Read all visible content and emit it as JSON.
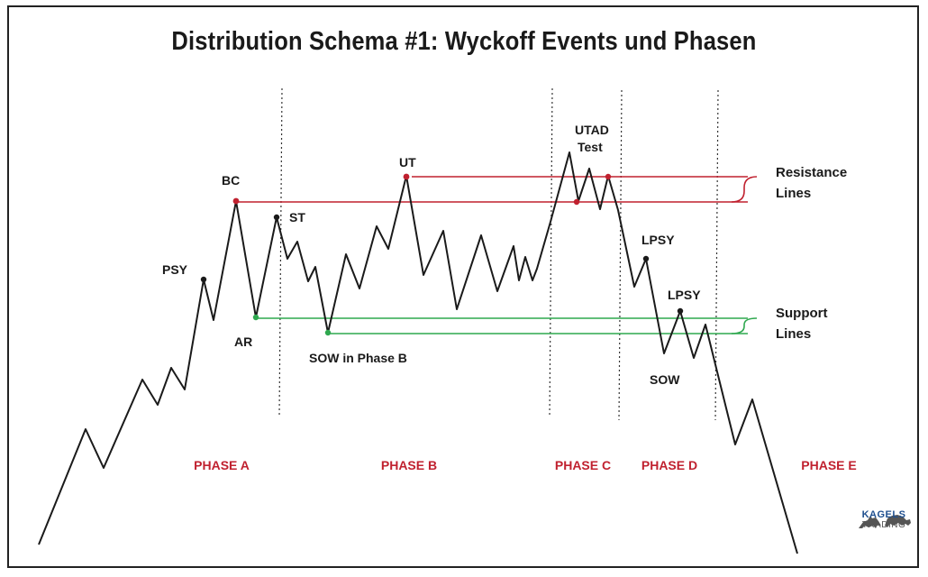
{
  "title": "Distribution Schema #1: Wyckoff Events und Phasen",
  "colors": {
    "price": "#1a1a1a",
    "resistance": "#c0212f",
    "support": "#2fa84f",
    "phase_text": "#c0212f",
    "logo": "#1f4f8f"
  },
  "events": {
    "psy": "PSY",
    "bc": "BC",
    "ar": "AR",
    "st": "ST",
    "sow_phase_b": "SOW in Phase B",
    "ut": "UT",
    "utad": "UTAD",
    "test": "Test",
    "lpsy_1": "LPSY",
    "lpsy_2": "LPSY",
    "sow": "SOW"
  },
  "phases": [
    "PHASE A",
    "PHASE B",
    "PHASE C",
    "PHASE D",
    "PHASE E"
  ],
  "legend": {
    "resistance_1": "Resistance",
    "resistance_2": "Lines",
    "support_1": "Support",
    "support_2": "Lines"
  },
  "logo": {
    "brand": "KAGELS",
    "sub": "TRADING",
    "icon": "bull-bear-icon"
  }
}
